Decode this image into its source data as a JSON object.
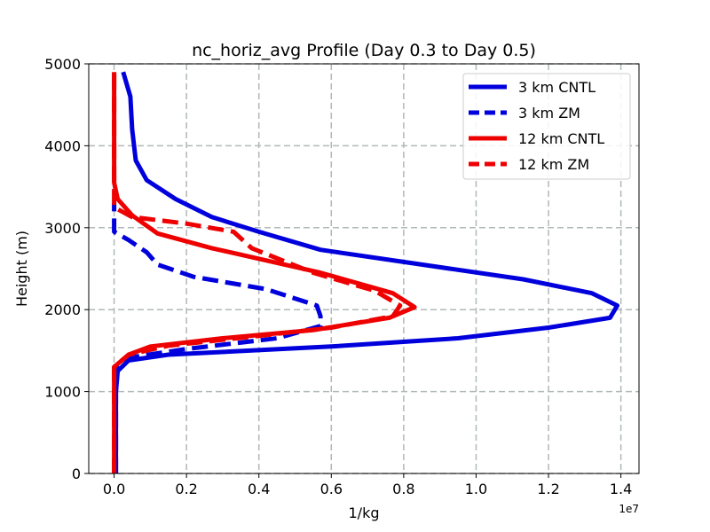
{
  "chart_data": {
    "type": "line",
    "title": "nc_horiz_avg Profile (Day 0.3 to Day 0.5)",
    "xlabel": "1/kg",
    "ylabel": "Height (m)",
    "x_scale_offset": "1e7",
    "xlim": [
      -0.07,
      1.45
    ],
    "ylim": [
      0,
      5000
    ],
    "x_ticks": [
      0.0,
      0.2,
      0.4,
      0.6,
      0.8,
      1.0,
      1.2,
      1.4
    ],
    "x_tick_labels": [
      "0.0",
      "0.2",
      "0.4",
      "0.6",
      "0.8",
      "1.0",
      "1.2",
      "1.4"
    ],
    "y_ticks": [
      0,
      1000,
      2000,
      3000,
      4000,
      5000
    ],
    "y_tick_labels": [
      "0",
      "1000",
      "2000",
      "3000",
      "4000",
      "5000"
    ],
    "grid": true,
    "legend_position": "top-right",
    "series": [
      {
        "name": "3 km CNTL",
        "color": "#0000dd",
        "style": "solid",
        "points": [
          [
            0.005,
            0
          ],
          [
            0.005,
            500
          ],
          [
            0.005,
            1000
          ],
          [
            0.01,
            1250
          ],
          [
            0.04,
            1380
          ],
          [
            0.15,
            1450
          ],
          [
            0.6,
            1550
          ],
          [
            0.95,
            1650
          ],
          [
            1.2,
            1780
          ],
          [
            1.37,
            1900
          ],
          [
            1.39,
            2050
          ],
          [
            1.32,
            2200
          ],
          [
            1.13,
            2370
          ],
          [
            0.85,
            2550
          ],
          [
            0.57,
            2730
          ],
          [
            0.4,
            2950
          ],
          [
            0.27,
            3130
          ],
          [
            0.17,
            3350
          ],
          [
            0.09,
            3580
          ],
          [
            0.06,
            3820
          ],
          [
            0.05,
            4200
          ],
          [
            0.045,
            4600
          ],
          [
            0.025,
            4900
          ]
        ]
      },
      {
        "name": "3 km ZM",
        "color": "#0000dd",
        "style": "dashed",
        "points": [
          [
            0.005,
            0
          ],
          [
            0.005,
            500
          ],
          [
            0.005,
            1000
          ],
          [
            0.01,
            1300
          ],
          [
            0.05,
            1420
          ],
          [
            0.2,
            1520
          ],
          [
            0.45,
            1650
          ],
          [
            0.57,
            1800
          ],
          [
            0.57,
            1920
          ],
          [
            0.56,
            2050
          ],
          [
            0.42,
            2250
          ],
          [
            0.22,
            2400
          ],
          [
            0.12,
            2550
          ],
          [
            0.09,
            2700
          ],
          [
            0.04,
            2850
          ],
          [
            0.0,
            2950
          ],
          [
            0.0,
            3300
          ]
        ]
      },
      {
        "name": "12 km CNTL",
        "color": "#ee0000",
        "style": "solid",
        "points": [
          [
            0.0,
            0
          ],
          [
            0.0,
            500
          ],
          [
            0.0,
            1000
          ],
          [
            0.0,
            1300
          ],
          [
            0.04,
            1450
          ],
          [
            0.1,
            1550
          ],
          [
            0.3,
            1650
          ],
          [
            0.55,
            1750
          ],
          [
            0.76,
            1900
          ],
          [
            0.83,
            2030
          ],
          [
            0.77,
            2200
          ],
          [
            0.57,
            2450
          ],
          [
            0.27,
            2750
          ],
          [
            0.12,
            2930
          ],
          [
            0.05,
            3150
          ],
          [
            0.01,
            3350
          ],
          [
            0.0,
            3550
          ],
          [
            0.0,
            4000
          ],
          [
            0.0,
            4900
          ]
        ]
      },
      {
        "name": "12 km ZM",
        "color": "#ee0000",
        "style": "dashed",
        "points": [
          [
            0.0,
            0
          ],
          [
            0.0,
            500
          ],
          [
            0.0,
            1000
          ],
          [
            0.0,
            1300
          ],
          [
            0.04,
            1450
          ],
          [
            0.15,
            1560
          ],
          [
            0.4,
            1680
          ],
          [
            0.6,
            1780
          ],
          [
            0.77,
            1920
          ],
          [
            0.79,
            2050
          ],
          [
            0.72,
            2230
          ],
          [
            0.55,
            2450
          ],
          [
            0.38,
            2750
          ],
          [
            0.33,
            2950
          ],
          [
            0.2,
            3050
          ],
          [
            0.05,
            3130
          ],
          [
            0.0,
            3250
          ],
          [
            0.0,
            3400
          ],
          [
            0.0,
            4000
          ],
          [
            0.0,
            4900
          ]
        ]
      }
    ]
  }
}
